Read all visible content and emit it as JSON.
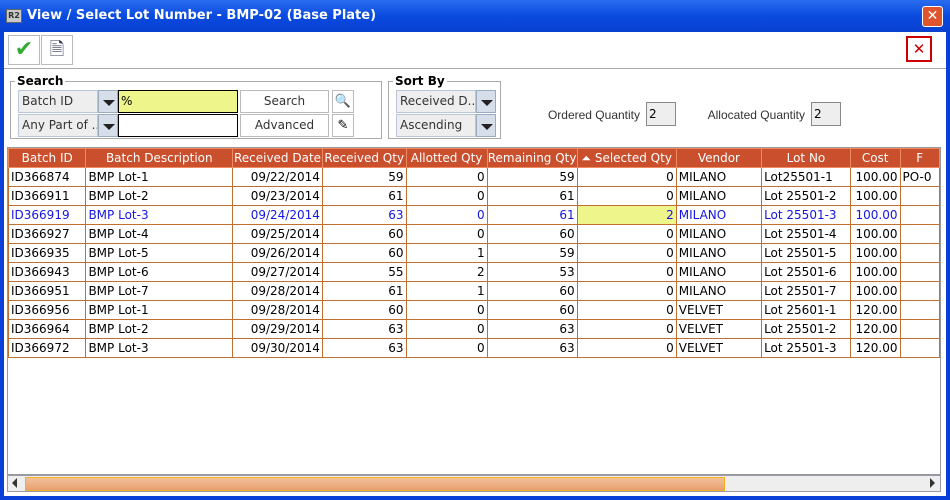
{
  "window": {
    "title": "View / Select Lot Number - BMP-02 (Base Plate)",
    "app_icon": "R2"
  },
  "toolbar": {
    "ok_icon": "check-icon",
    "report_icon": "document-icon",
    "close_icon": "close-icon"
  },
  "search": {
    "legend": "Search",
    "field_select": "Batch ID",
    "match_select": "Any Part of ...",
    "value": "%",
    "value2": "",
    "search_label": "Search",
    "advanced_label": "Advanced"
  },
  "sort": {
    "legend": "Sort By",
    "field": "Received D...",
    "order": "Ascending"
  },
  "quantities": {
    "ordered_label": "Ordered Quantity",
    "ordered_value": "2",
    "allocated_label": "Allocated Quantity",
    "allocated_value": "2"
  },
  "table": {
    "columns": [
      "Batch ID",
      "Batch Description",
      "Received Date",
      "Received Qty",
      "Allotted Qty",
      "Remaining Qty",
      "Selected Qty",
      "Vendor",
      "Lot No",
      "Cost",
      "F"
    ],
    "sorted_column": "Selected Qty",
    "rows": [
      [
        "ID366874",
        "BMP Lot-1",
        "09/22/2014",
        "59",
        "0",
        "59",
        "0",
        "MILANO",
        "Lot25501-1",
        "100.00",
        "PO-0"
      ],
      [
        "ID366911",
        "BMP Lot-2",
        "09/23/2014",
        "61",
        "0",
        "61",
        "0",
        "MILANO",
        "Lot 25501-2",
        "100.00",
        ""
      ],
      [
        "ID366919",
        "BMP Lot-3",
        "09/24/2014",
        "63",
        "0",
        "61",
        "2",
        "MILANO",
        "Lot 25501-3",
        "100.00",
        ""
      ],
      [
        "ID366927",
        "BMP Lot-4",
        "09/25/2014",
        "60",
        "0",
        "60",
        "0",
        "MILANO",
        "Lot 25501-4",
        "100.00",
        ""
      ],
      [
        "ID366935",
        "BMP Lot-5",
        "09/26/2014",
        "60",
        "1",
        "59",
        "0",
        "MILANO",
        "Lot 25501-5",
        "100.00",
        ""
      ],
      [
        "ID366943",
        "BMP Lot-6",
        "09/27/2014",
        "55",
        "2",
        "53",
        "0",
        "MILANO",
        "Lot 25501-6",
        "100.00",
        ""
      ],
      [
        "ID366951",
        "BMP Lot-7",
        "09/28/2014",
        "61",
        "1",
        "60",
        "0",
        "MILANO",
        "Lot 25501-7",
        "100.00",
        ""
      ],
      [
        "ID366956",
        "BMP Lot-1",
        "09/28/2014",
        "60",
        "0",
        "60",
        "0",
        "VELVET",
        "Lot 25601-1",
        "120.00",
        ""
      ],
      [
        "ID366964",
        "BMP Lot-2",
        "09/29/2014",
        "63",
        "0",
        "63",
        "0",
        "VELVET",
        "Lot 25501-2",
        "120.00",
        ""
      ],
      [
        "ID366972",
        "BMP Lot-3",
        "09/30/2014",
        "63",
        "0",
        "63",
        "0",
        "VELVET",
        "Lot 25501-3",
        "120.00",
        ""
      ]
    ],
    "selected_row": 2
  },
  "colors": {
    "header": "#c94f2d",
    "selected_text": "#1515e0",
    "highlight_cell": "#eef58a",
    "title_bar": "#0a4ae0"
  }
}
